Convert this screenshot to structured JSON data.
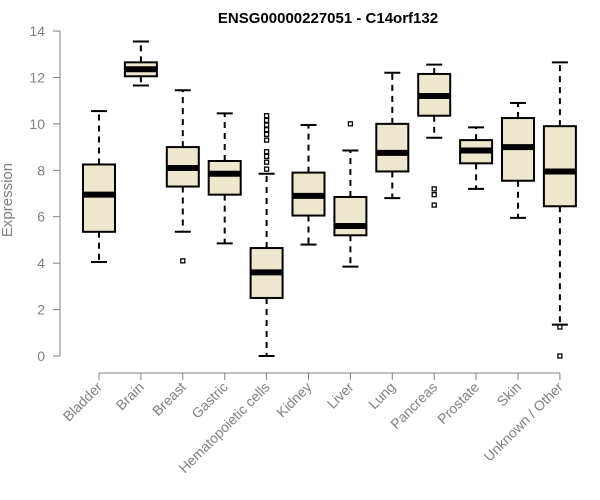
{
  "chart_data": {
    "type": "boxplot",
    "title": "ENSG00000227051 - C14orf132",
    "ylabel": "Expression",
    "xlabel": "",
    "ylim": [
      0,
      14
    ],
    "yticks": [
      0,
      2,
      4,
      6,
      8,
      10,
      12,
      14
    ],
    "box_color": "#ede7cd",
    "categories": [
      "Bladder",
      "Brain",
      "Breast",
      "Gastric",
      "Hematopoietic cells",
      "Kidney",
      "Liver",
      "Lung",
      "Pancreas",
      "Prostate",
      "Skin",
      "Unknown / Other"
    ],
    "boxes": [
      {
        "min": 4.05,
        "q1": 5.35,
        "median": 6.95,
        "q3": 8.25,
        "max": 10.55,
        "outliers": []
      },
      {
        "min": 11.65,
        "q1": 12.05,
        "median": 12.35,
        "q3": 12.65,
        "max": 13.55,
        "outliers": []
      },
      {
        "min": 5.35,
        "q1": 7.3,
        "median": 8.1,
        "q3": 9.0,
        "max": 11.45,
        "outliers": [
          4.1
        ]
      },
      {
        "min": 4.85,
        "q1": 6.95,
        "median": 7.85,
        "q3": 8.4,
        "max": 10.45,
        "outliers": []
      },
      {
        "min": 0.0,
        "q1": 2.5,
        "median": 3.6,
        "q3": 4.65,
        "max": 7.85,
        "outliers": [
          8.05,
          8.35,
          8.6,
          8.8,
          9.3,
          9.55,
          9.75,
          9.95,
          10.15,
          10.35
        ]
      },
      {
        "min": 4.8,
        "q1": 6.05,
        "median": 6.9,
        "q3": 7.9,
        "max": 9.95,
        "outliers": []
      },
      {
        "min": 3.85,
        "q1": 5.2,
        "median": 5.6,
        "q3": 6.85,
        "max": 8.85,
        "outliers": [
          10.0
        ]
      },
      {
        "min": 6.8,
        "q1": 7.95,
        "median": 8.75,
        "q3": 10.0,
        "max": 12.2,
        "outliers": []
      },
      {
        "min": 9.4,
        "q1": 10.35,
        "median": 11.2,
        "q3": 12.15,
        "max": 12.55,
        "outliers": [
          7.2,
          6.95,
          6.5
        ]
      },
      {
        "min": 7.2,
        "q1": 8.3,
        "median": 8.85,
        "q3": 9.3,
        "max": 9.85,
        "outliers": []
      },
      {
        "min": 5.95,
        "q1": 7.55,
        "median": 9.0,
        "q3": 10.25,
        "max": 10.9,
        "outliers": []
      },
      {
        "min": 1.35,
        "q1": 6.45,
        "median": 7.95,
        "q3": 9.9,
        "max": 12.65,
        "outliers": [
          1.25,
          0.0
        ]
      }
    ]
  }
}
